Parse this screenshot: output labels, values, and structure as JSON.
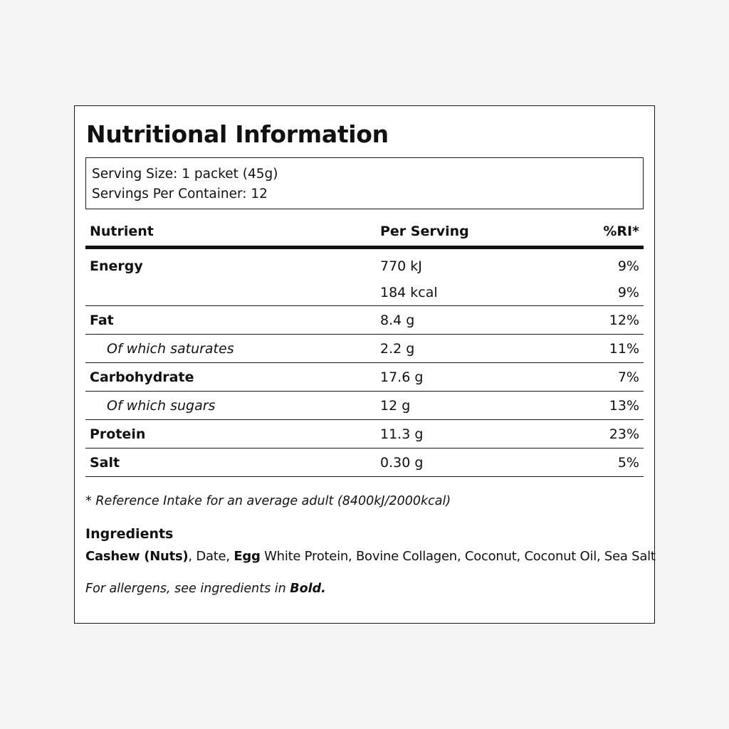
{
  "title": "Nutritional Information",
  "serving": {
    "size": "Serving Size: 1 packet (45g)",
    "per_container": "Servings Per Container: 12"
  },
  "table": {
    "headers": {
      "nutrient": "Nutrient",
      "per_serving": "Per Serving",
      "ri": "%RI*"
    },
    "rows": [
      {
        "name": "Energy",
        "value": "770 kJ",
        "ri": "9%"
      },
      {
        "name": "",
        "value": "184 kcal",
        "ri": "9%"
      },
      {
        "name": "Fat",
        "value": "8.4 g",
        "ri": "12%"
      },
      {
        "name": "Of which saturates",
        "value": "2.2 g",
        "ri": "11%"
      },
      {
        "name": "Carbohydrate",
        "value": "17.6 g",
        "ri": "7%"
      },
      {
        "name": "Of which sugars",
        "value": "12 g",
        "ri": "13%"
      },
      {
        "name": "Protein",
        "value": "11.3 g",
        "ri": "23%"
      },
      {
        "name": "Salt",
        "value": "0.30 g",
        "ri": "5%"
      }
    ]
  },
  "footnote": "* Reference Intake for an average adult (8400kJ/2000kcal)",
  "ingredients": {
    "heading": "Ingredients",
    "items": [
      {
        "text": "Cashew (Nuts)",
        "bold": true
      },
      {
        "text": ", Date, ",
        "bold": false
      },
      {
        "text": "Egg",
        "bold": true
      },
      {
        "text": " White Protein, Bovine Collagen, Coconut, Coconut Oil, Sea Salt",
        "bold": false
      }
    ]
  },
  "allergen_note": {
    "prefix": "For allergens, see ingredients in ",
    "emphasis": "Bold."
  }
}
